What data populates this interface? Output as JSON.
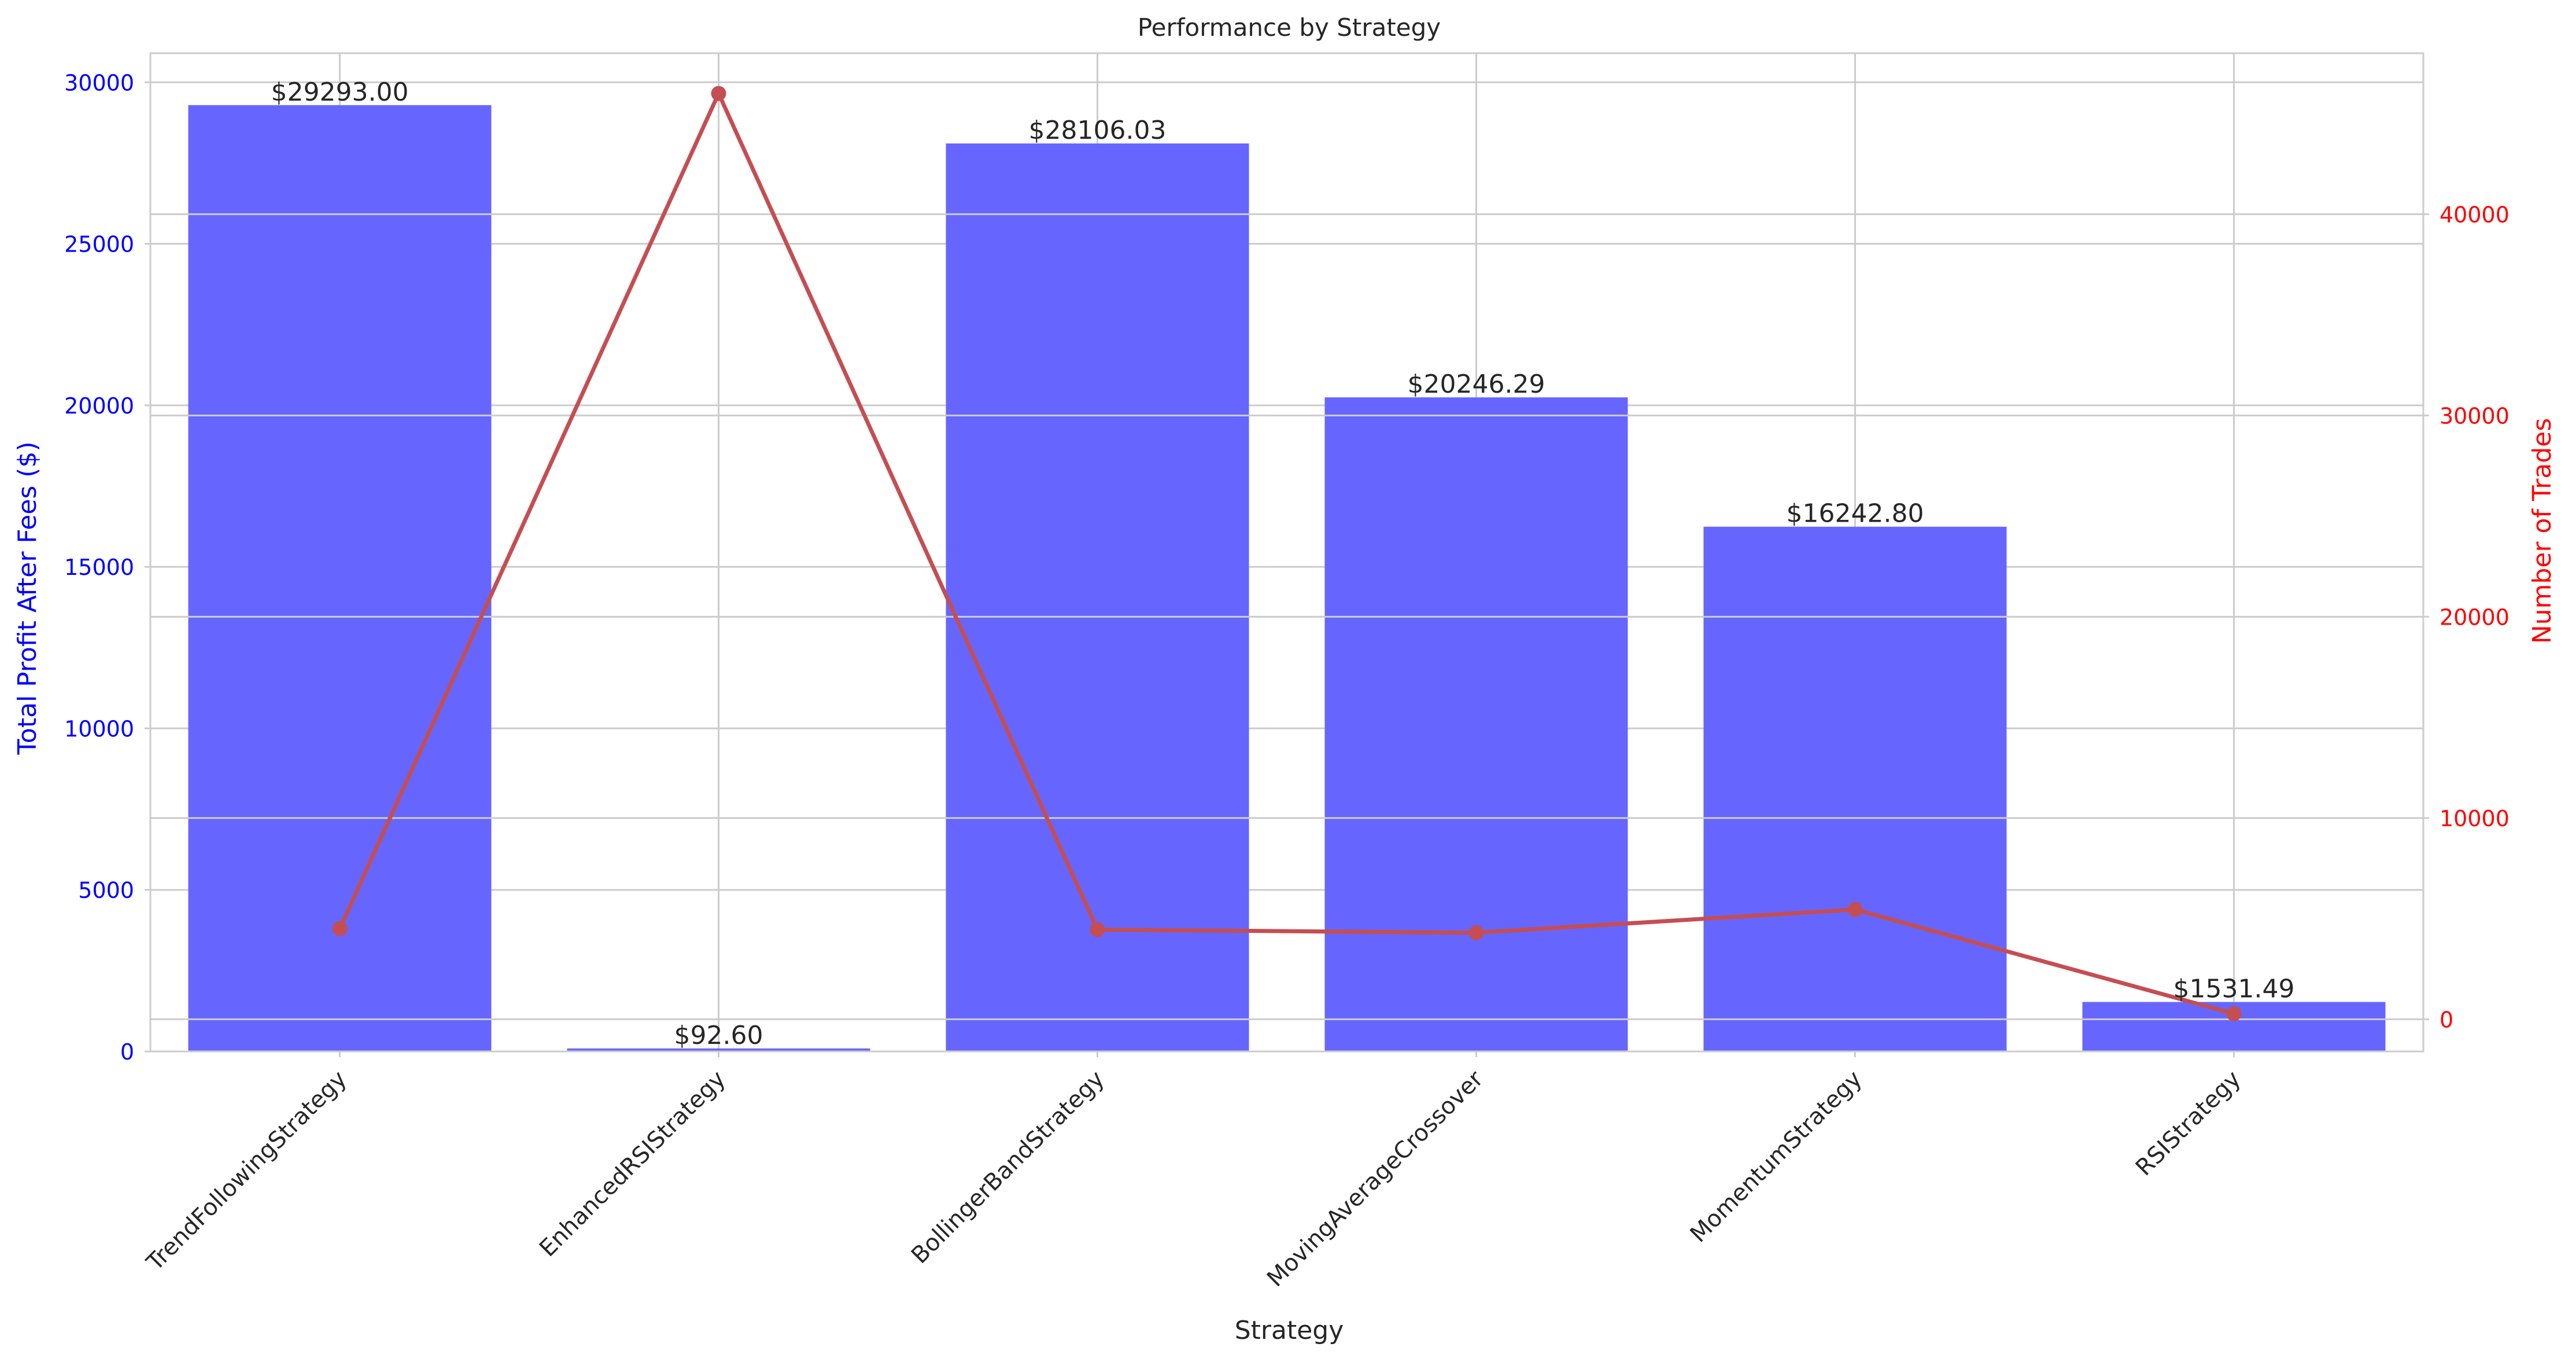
{
  "chart_data": {
    "type": "bar",
    "title": "Performance by Strategy",
    "xlabel": "Strategy",
    "ylabel": "Total Profit After Fees ($)",
    "y2label": "Number of Trades",
    "categories": [
      "TrendFollowingStrategy",
      "EnhancedRSIStrategy",
      "BollingerBandStrategy",
      "MovingAverageCrossover",
      "MomentumStrategy",
      "RSIStrategy"
    ],
    "series": [
      {
        "axis": "left",
        "kind": "bar",
        "values": [
          29293.0,
          92.6,
          28106.03,
          20246.29,
          16242.8,
          1531.49
        ],
        "data_labels": [
          "$29293.00",
          "$92.60",
          "$28106.03",
          "$20246.29",
          "$16242.80",
          "$1531.49"
        ],
        "color": "#6666ff"
      },
      {
        "axis": "right",
        "kind": "line",
        "values": [
          4500,
          46000,
          4450,
          4300,
          5450,
          270
        ],
        "color": "#c44e52"
      }
    ],
    "ylim": [
      0,
      30900
    ],
    "y2lim": [
      -1600,
      48000
    ],
    "yticks": [
      0,
      5000,
      10000,
      15000,
      20000,
      25000,
      30000
    ],
    "y2ticks": [
      0,
      10000,
      20000,
      30000,
      40000
    ],
    "left_axis_color": "#0000ff",
    "right_axis_color": "#ff0000",
    "grid": true
  }
}
